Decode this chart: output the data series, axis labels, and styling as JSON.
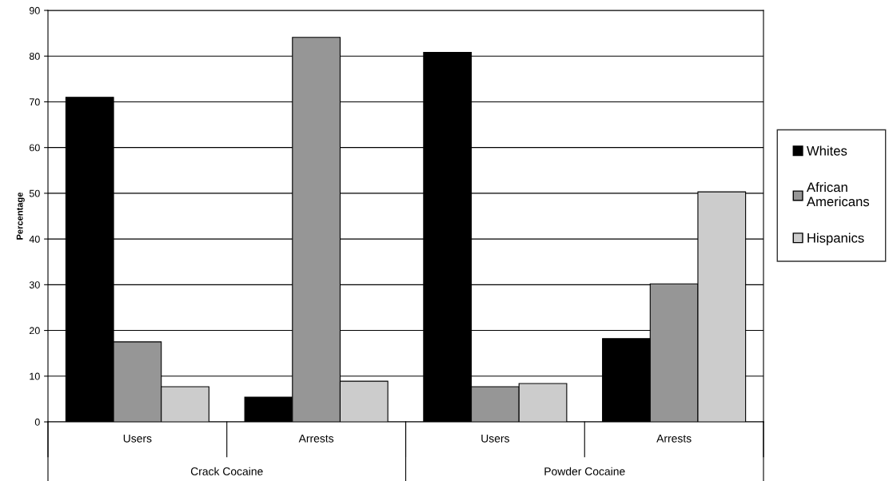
{
  "chart_data": {
    "type": "bar",
    "ylabel": "Percentage",
    "categories": [
      "Users",
      "Arrests",
      "Users",
      "Arrests"
    ],
    "series": [
      {
        "name": "Whites",
        "color": "#000000",
        "values": [
          71,
          5.4,
          80.8,
          18.2
        ]
      },
      {
        "name": "African Americans",
        "color": "#969696",
        "values": [
          17.5,
          84.1,
          7.7,
          30.2
        ]
      },
      {
        "name": "Hispanics",
        "color": "#cccccc",
        "values": [
          7.7,
          8.9,
          8.4,
          50.3
        ]
      }
    ],
    "annotations": [
      "Crack Cocaine",
      "Powder Cocaine"
    ],
    "ylim": [
      0,
      90
    ],
    "yticks": [
      0,
      10,
      20,
      30,
      40,
      50,
      60,
      70,
      80,
      90
    ],
    "grid": "y",
    "legend": "right"
  }
}
